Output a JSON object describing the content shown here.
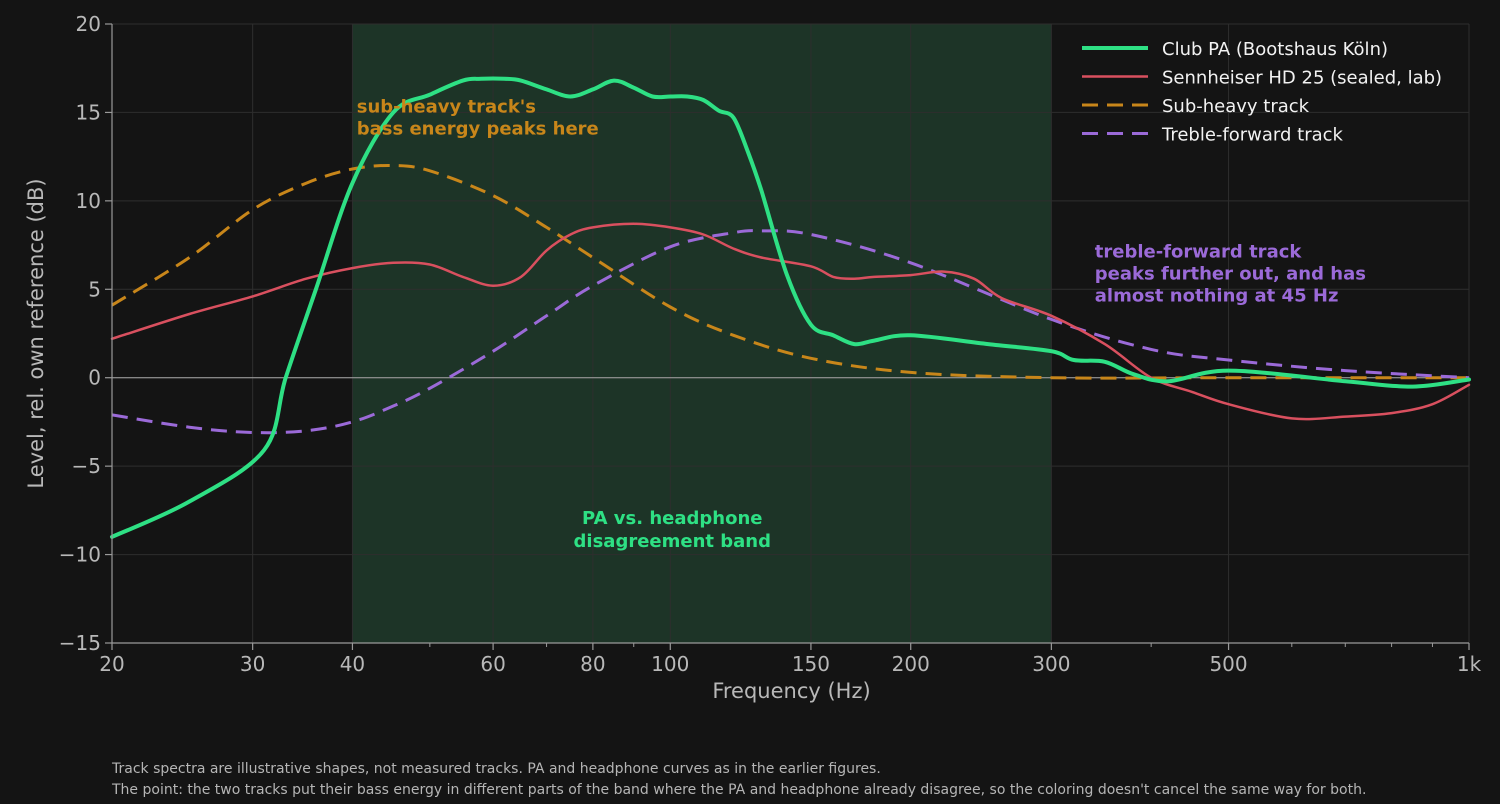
{
  "chart_data": {
    "type": "line",
    "xlabel": "Frequency (Hz)",
    "ylabel": "Level, rel. own reference (dB)",
    "x_scale": "log",
    "xlim": [
      20,
      1000
    ],
    "ylim": [
      -15,
      20
    ],
    "x_ticks": [
      20,
      30,
      40,
      60,
      80,
      100,
      150,
      200,
      300,
      500,
      1000
    ],
    "x_tick_labels": [
      "20",
      "30",
      "40",
      "60",
      "80",
      "100",
      "150",
      "200",
      "300",
      "500",
      "1k"
    ],
    "y_ticks": [
      -15,
      -10,
      -5,
      0,
      5,
      10,
      15,
      20
    ],
    "y_tick_labels": [
      "−15",
      "−10",
      "−5",
      "0",
      "5",
      "10",
      "15",
      "20"
    ],
    "grid": true,
    "legend_position": "top-right",
    "shaded_band": {
      "x_range": [
        40,
        300
      ],
      "label": [
        "PA vs. headphone",
        "disagreement band"
      ],
      "label_at": [
        100,
        -9
      ],
      "color": "#1f3a2a"
    },
    "series": [
      {
        "name": "Club PA (Bootshaus Köln)",
        "color": "#2ee084",
        "style": "solid",
        "width": 4,
        "x": [
          20,
          25,
          31,
          33,
          36,
          40,
          45,
          50,
          55,
          58,
          62,
          65,
          70,
          75,
          80,
          85,
          90,
          95,
          100,
          105,
          110,
          115,
          120,
          125,
          130,
          140,
          150,
          160,
          170,
          180,
          200,
          250,
          300,
          320,
          350,
          380,
          420,
          500,
          700,
          850,
          1000
        ],
        "y": [
          -9,
          -7,
          -4.1,
          0,
          5,
          11,
          15,
          16,
          16.8,
          16.9,
          16.9,
          16.8,
          16.3,
          15.9,
          16.3,
          16.8,
          16.4,
          15.9,
          15.9,
          15.9,
          15.7,
          15.1,
          14.7,
          12.8,
          10.6,
          5.8,
          3,
          2.4,
          1.9,
          2.1,
          2.4,
          1.9,
          1.5,
          1.0,
          0.9,
          0.2,
          -0.2,
          0.4,
          -0.2,
          -0.5,
          -0.1
        ]
      },
      {
        "name": "Sennheiser HD 25 (sealed, lab)",
        "color": "#d9505f",
        "style": "solid",
        "width": 2.5,
        "x": [
          20,
          25,
          30,
          35,
          40,
          45,
          50,
          55,
          60,
          65,
          70,
          75,
          80,
          90,
          100,
          110,
          120,
          130,
          150,
          160,
          170,
          180,
          200,
          220,
          240,
          260,
          300,
          350,
          400,
          450,
          500,
          600,
          700,
          800,
          900,
          1000
        ],
        "y": [
          2.2,
          3.6,
          4.6,
          5.6,
          6.2,
          6.5,
          6.4,
          5.7,
          5.2,
          5.7,
          7.2,
          8.1,
          8.5,
          8.7,
          8.5,
          8.1,
          7.3,
          6.8,
          6.3,
          5.7,
          5.6,
          5.7,
          5.8,
          6.0,
          5.6,
          4.5,
          3.5,
          1.9,
          0.0,
          -0.8,
          -1.5,
          -2.3,
          -2.2,
          -2.0,
          -1.5,
          -0.4
        ]
      },
      {
        "name": "Sub-heavy track",
        "color": "#c8861a",
        "style": "dashed",
        "width": 3,
        "x": [
          20,
          25,
          30,
          35,
          40,
          45,
          50,
          60,
          70,
          80,
          100,
          120,
          150,
          200,
          300,
          500,
          1000
        ],
        "y": [
          4.1,
          6.8,
          9.5,
          11.0,
          11.8,
          12.0,
          11.7,
          10.3,
          8.5,
          6.8,
          4.0,
          2.4,
          1.1,
          0.3,
          0.0,
          0.0,
          0.0
        ]
      },
      {
        "name": "Treble-forward track",
        "color": "#9b6ad8",
        "style": "dashed",
        "width": 3,
        "x": [
          20,
          25,
          30,
          35,
          40,
          45,
          50,
          60,
          70,
          80,
          100,
          120,
          130,
          150,
          200,
          300,
          400,
          500,
          700,
          1000
        ],
        "y": [
          -2.1,
          -2.8,
          -3.1,
          -3.0,
          -2.5,
          -1.6,
          -0.6,
          1.5,
          3.5,
          5.2,
          7.4,
          8.2,
          8.3,
          8.1,
          6.5,
          3.3,
          1.6,
          1.0,
          0.4,
          0.0
        ]
      }
    ],
    "annotations": [
      {
        "lines": [
          "sub-heavy track's",
          "bass energy peaks here"
        ],
        "x": 40.5,
        "y": 15.0,
        "color": "#c8861a"
      },
      {
        "lines": [
          "treble-forward track",
          "peaks further out, and has",
          "almost nothing at 45 Hz"
        ],
        "x": 340,
        "y": 6.8,
        "color": "#9b6ad8"
      }
    ]
  },
  "footnotes": [
    "Track spectra are illustrative shapes, not measured tracks. PA and headphone curves as in the earlier figures.",
    "The point: the two tracks put their bass energy in different parts of the band where the PA and headphone already disagree, so the coloring doesn't cancel the same way for both."
  ]
}
